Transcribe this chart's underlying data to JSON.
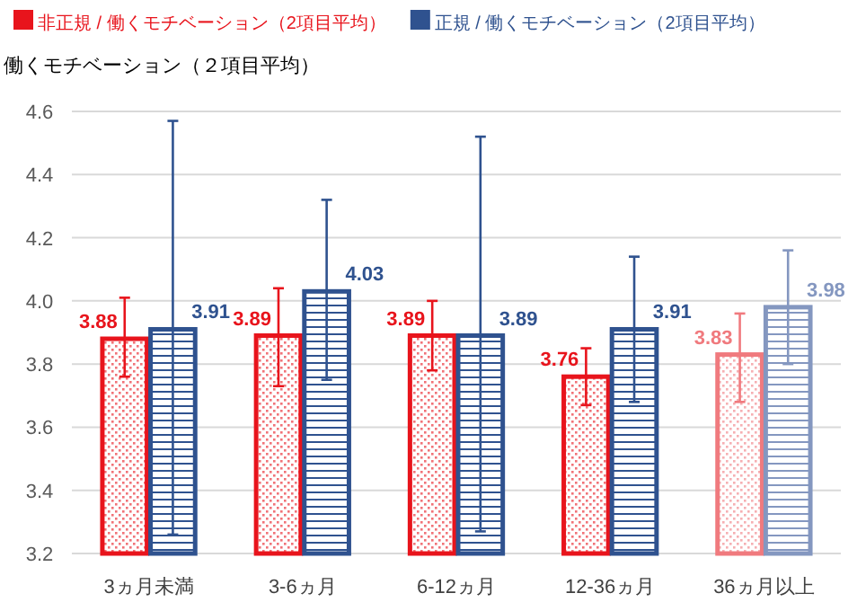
{
  "chart_data": {
    "type": "bar",
    "ylabel": "働くモチベーション（２項目平均）",
    "categories": [
      "3ヵ月未満",
      "3-6ヵ月",
      "6-12ヵ月",
      "12-36ヵ月",
      "36ヵ月以上"
    ],
    "series": [
      {
        "name": "非正規 / 働くモチベーション（2項目平均）",
        "color": "#e8141c",
        "colors": [
          "#e8141c",
          "#e8141c",
          "#e8141c",
          "#e8141c",
          "#f07a7e"
        ],
        "values": [
          3.88,
          3.89,
          3.89,
          3.76,
          3.83
        ],
        "errors": [
          [
            3.76,
            4.01
          ],
          [
            3.73,
            4.04
          ],
          [
            3.78,
            4.0
          ],
          [
            3.67,
            3.85
          ],
          [
            3.68,
            3.96
          ]
        ]
      },
      {
        "name": "正規 / 働くモチベーション（2項目平均）",
        "color": "#2f528f",
        "colors": [
          "#2f528f",
          "#2f528f",
          "#2f528f",
          "#2f528f",
          "#8497c0"
        ],
        "values": [
          3.91,
          4.03,
          3.89,
          3.91,
          3.98
        ],
        "errors": [
          [
            3.26,
            4.57
          ],
          [
            3.75,
            4.32
          ],
          [
            3.27,
            4.52
          ],
          [
            3.68,
            4.14
          ],
          [
            3.8,
            4.16
          ]
        ]
      }
    ],
    "ylim": [
      3.2,
      4.6
    ],
    "yticks": [
      3.2,
      3.4,
      3.6,
      3.8,
      {
        "value": 4.0,
        "label": "4.0"
      },
      4.2,
      4.4,
      4.6
    ],
    "grid": "y",
    "legend": "top",
    "data_labels": true
  }
}
